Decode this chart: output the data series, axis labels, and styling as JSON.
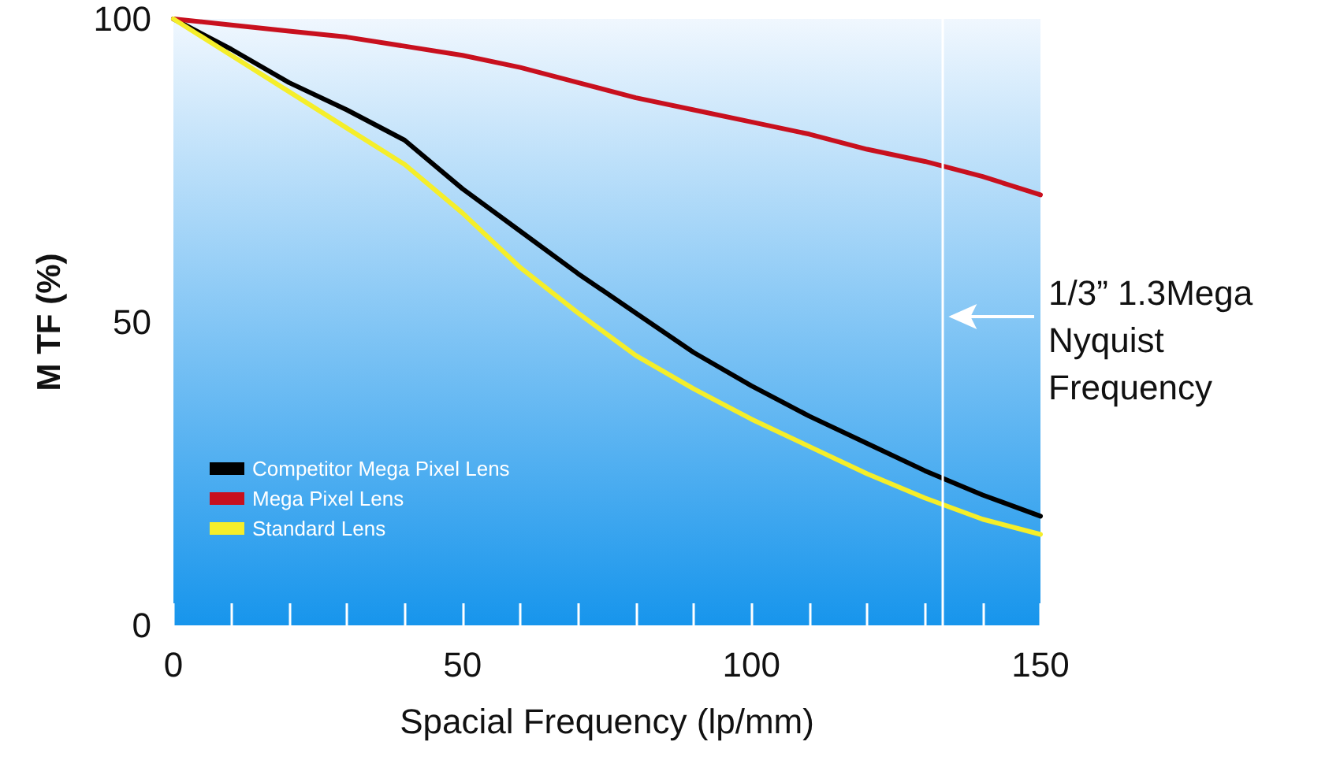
{
  "chart_data": {
    "type": "line",
    "xlabel": "Spacial Frequency (lp/mm)",
    "ylabel": "M TF (%)",
    "x": [
      0,
      10,
      20,
      30,
      40,
      50,
      60,
      70,
      80,
      90,
      100,
      110,
      120,
      130,
      140,
      150
    ],
    "series": [
      {
        "name": "Competitor Mega Pixel Lens",
        "color": "#000000",
        "values": [
          100,
          95,
          89.5,
          85,
          80,
          72,
          65,
          58,
          51.5,
          45,
          39.5,
          34.5,
          30,
          25.5,
          21.5,
          18
        ]
      },
      {
        "name": "Mega Pixel Lens",
        "color": "#c8101e",
        "values": [
          100,
          99,
          98,
          97,
          95.5,
          94,
          92,
          89.5,
          87,
          85,
          83,
          81,
          78.5,
          76.5,
          74,
          71
        ]
      },
      {
        "name": "Standard Lens",
        "color": "#f5ee2a",
        "values": [
          100,
          94,
          88,
          82,
          76,
          68,
          59,
          51.5,
          44.5,
          39,
          34,
          29.5,
          25,
          21,
          17.5,
          15
        ]
      }
    ],
    "xlim": [
      0,
      150
    ],
    "ylim": [
      0,
      100
    ],
    "xticks": [
      0,
      {
        "value": 10,
        "label": null
      },
      {
        "value": 20,
        "label": null
      },
      {
        "value": 30,
        "label": null
      },
      {
        "value": 40,
        "label": null
      },
      50,
      {
        "value": 60,
        "label": null
      },
      {
        "value": 70,
        "label": null
      },
      {
        "value": 80,
        "label": null
      },
      {
        "value": 90,
        "label": null
      },
      100,
      {
        "value": 110,
        "label": null
      },
      {
        "value": 120,
        "label": null
      },
      {
        "value": 130,
        "label": null
      },
      {
        "value": 140,
        "label": null
      },
      150
    ],
    "yticks": [
      0,
      50,
      100
    ],
    "ref_lines": [
      {
        "axis": "x",
        "value": 133,
        "label": "1/3” 1.3Mega\nNyquist\nFrequency",
        "color": "#ffffff"
      }
    ],
    "legend": "bottom left",
    "marker": "none",
    "line_style": "solid",
    "grid": false
  }
}
